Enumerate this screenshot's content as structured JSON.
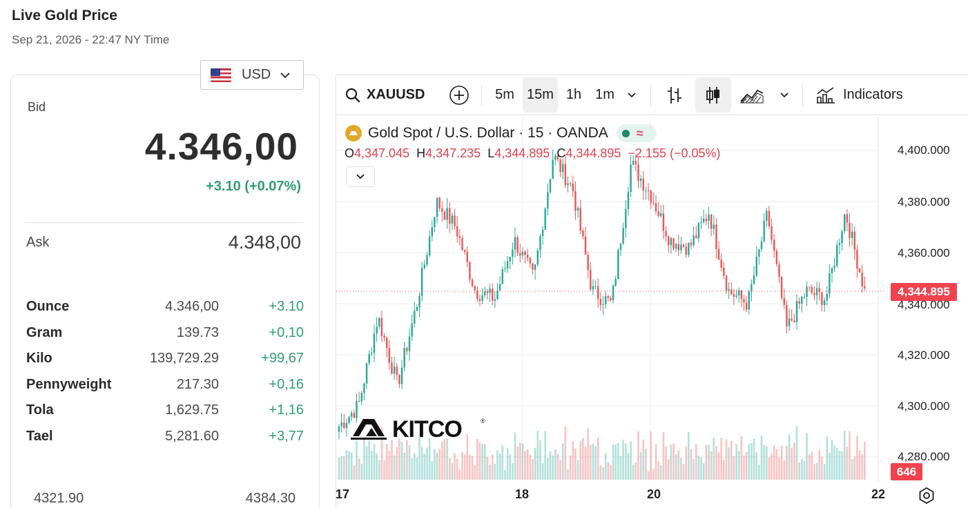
{
  "header": {
    "title": "Live Gold Price",
    "timestamp": "Sep 21, 2026 - 22:47 NY Time"
  },
  "currency": {
    "selected": "USD",
    "flag_icon": "us-flag-icon"
  },
  "quote": {
    "bid_label": "Bid",
    "bid_value": "4.346,00",
    "bid_change": "+3.10 (+0.07%)",
    "ask_label": "Ask",
    "ask_value": "4.348,00"
  },
  "units": [
    {
      "name": "Ounce",
      "price": "4.346,00",
      "change": "+3.10"
    },
    {
      "name": "Gram",
      "price": "139.73",
      "change": "+0,10"
    },
    {
      "name": "Kilo",
      "price": "139,729.29",
      "change": "+99,67"
    },
    {
      "name": "Pennyweight",
      "price": "217.30",
      "change": "+0,16"
    },
    {
      "name": "Tola",
      "price": "1,629.75",
      "change": "+1,16"
    },
    {
      "name": "Tael",
      "price": "5,281.60",
      "change": "+3,77"
    }
  ],
  "day_range": {
    "low": "4321.90",
    "high": "4384.30"
  },
  "toolbar": {
    "symbol": "XAUUSD",
    "intervals": [
      "5m",
      "15m",
      "1h",
      "1m"
    ],
    "active_interval": "15m",
    "indicators_label": "Indicators"
  },
  "legend": {
    "title": "Gold Spot / U.S. Dollar · 15 · OANDA",
    "o_key": "O",
    "o_val": "4,347.045",
    "h_key": "H",
    "h_val": "4,347.235",
    "l_key": "L",
    "l_val": "4,344.895",
    "c_key": "C",
    "c_val": "4,344.895",
    "change": "−2.155 (−0.05%)",
    "status_symbol": "≈"
  },
  "colors": {
    "up": "#26a69a",
    "down": "#ef5350",
    "accent_green": "#2f9e73",
    "badge": "#f0434f"
  },
  "chart_data": {
    "type": "candlestick",
    "y_ticks": [
      "4,400.000",
      "4,380.000",
      "4,360.000",
      "4,340.000",
      "4,320.000",
      "4,300.000",
      "4,280.000"
    ],
    "ylim": [
      4270,
      4405
    ],
    "x_ticks": [
      "17",
      "18",
      "20",
      "22"
    ],
    "last_price": "4,344.895",
    "last_volume": "646",
    "ohlc_path_keypoints": [
      4292,
      4300,
      4335,
      4308,
      4340,
      4380,
      4370,
      4345,
      4342,
      4365,
      4350,
      4398,
      4385,
      4345,
      4340,
      4395,
      4383,
      4365,
      4362,
      4376,
      4345,
      4340,
      4375,
      4330,
      4345,
      4342,
      4376,
      4345
    ]
  }
}
